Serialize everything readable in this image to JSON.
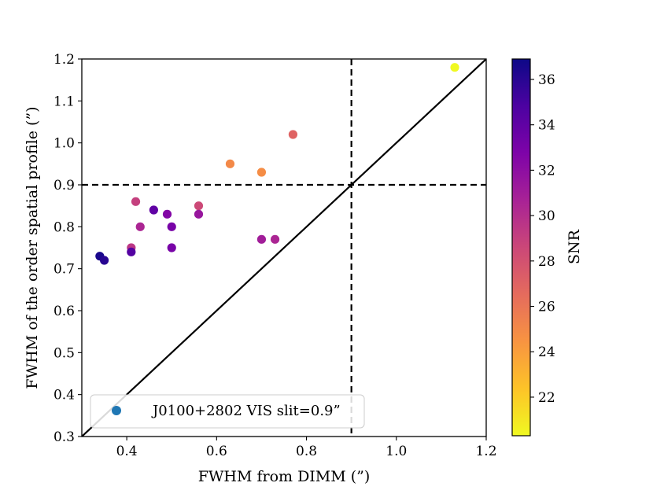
{
  "chart_data": {
    "type": "scatter",
    "title": "",
    "xlabel": "FWHM from DIMM (”)",
    "ylabel": "FWHM of the order spatial profile (”)",
    "xlim": [
      0.3,
      1.2
    ],
    "ylim": [
      0.3,
      1.2
    ],
    "x_ticks": [
      0.4,
      0.6,
      0.8,
      1.0,
      1.2
    ],
    "x_tick_labels": [
      "0.4",
      "0.6",
      "0.8",
      "1.0",
      "1.2"
    ],
    "y_ticks": [
      0.3,
      0.4,
      0.5,
      0.6,
      0.7,
      0.8,
      0.9,
      1.0,
      1.1,
      1.2
    ],
    "y_tick_labels": [
      "0.3",
      "0.4",
      "0.5",
      "0.6",
      "0.7",
      "0.8",
      "0.9",
      "1.0",
      "1.1",
      "1.2"
    ],
    "points": [
      {
        "x": 1.13,
        "y": 1.18,
        "snr": 20.3
      },
      {
        "x": 0.77,
        "y": 1.02,
        "snr": 27.0
      },
      {
        "x": 0.63,
        "y": 0.95,
        "snr": 25.0
      },
      {
        "x": 0.7,
        "y": 0.93,
        "snr": 24.8
      },
      {
        "x": 0.42,
        "y": 0.86,
        "snr": 29.0
      },
      {
        "x": 0.56,
        "y": 0.85,
        "snr": 28.5
      },
      {
        "x": 0.46,
        "y": 0.84,
        "snr": 34.0
      },
      {
        "x": 0.49,
        "y": 0.83,
        "snr": 32.5
      },
      {
        "x": 0.56,
        "y": 0.83,
        "snr": 31.5
      },
      {
        "x": 0.43,
        "y": 0.8,
        "snr": 30.5
      },
      {
        "x": 0.5,
        "y": 0.8,
        "snr": 33.0
      },
      {
        "x": 0.7,
        "y": 0.77,
        "snr": 31.0
      },
      {
        "x": 0.73,
        "y": 0.77,
        "snr": 30.5
      },
      {
        "x": 0.41,
        "y": 0.75,
        "snr": 29.5
      },
      {
        "x": 0.5,
        "y": 0.75,
        "snr": 33.0
      },
      {
        "x": 0.41,
        "y": 0.74,
        "snr": 34.5
      },
      {
        "x": 0.34,
        "y": 0.73,
        "snr": 36.5
      },
      {
        "x": 0.35,
        "y": 0.72,
        "snr": 36.0
      }
    ],
    "reference_lines": {
      "diagonal": "y = x",
      "vertical_dashed_x": 0.9,
      "horizontal_dashed_y": 0.9
    },
    "legend": {
      "position": "lower-left",
      "entries": [
        {
          "label": "J0100+2802 VIS slit=0.9”",
          "color": "#1f77b4"
        }
      ]
    },
    "colorbar": {
      "label": "SNR",
      "colormap": "plasma",
      "range": [
        20.3,
        36.9
      ],
      "ticks": [
        22,
        24,
        26,
        28,
        30,
        32,
        34,
        36
      ],
      "tick_labels": [
        "22",
        "24",
        "26",
        "28",
        "30",
        "32",
        "34",
        "36"
      ]
    }
  }
}
